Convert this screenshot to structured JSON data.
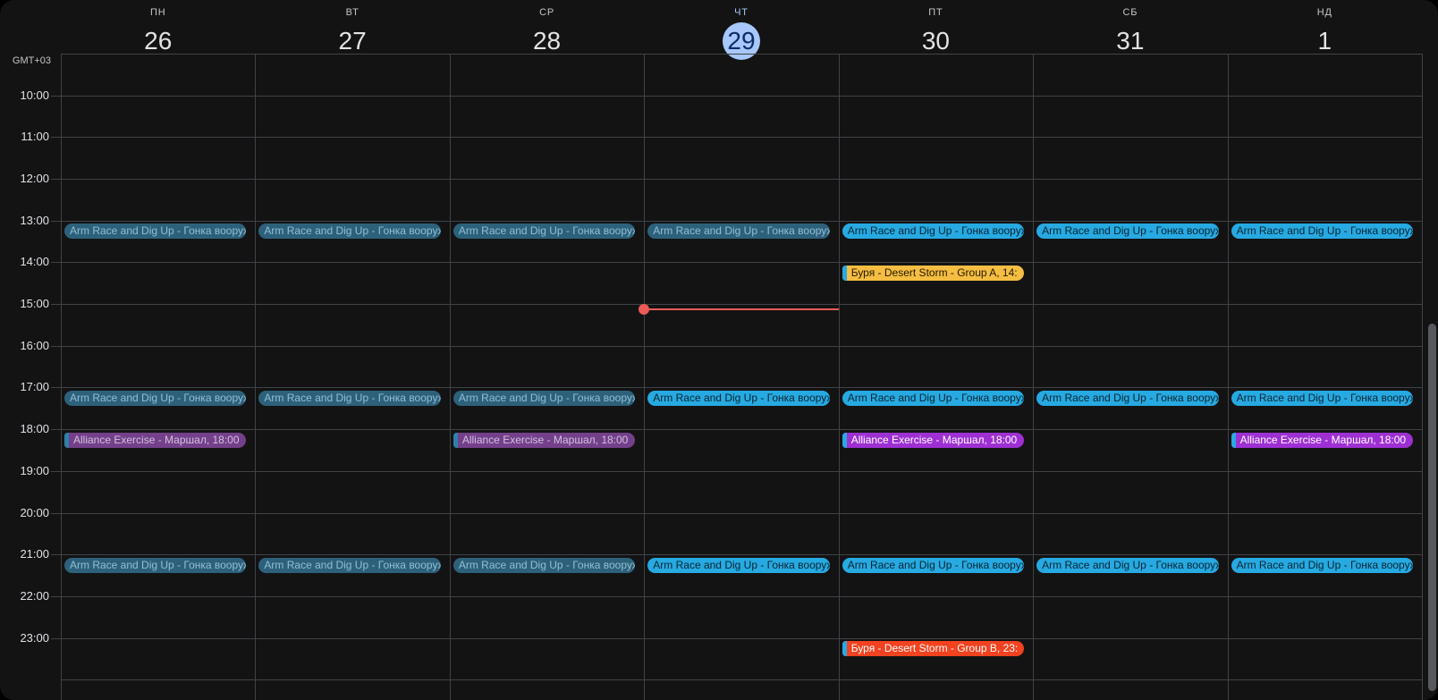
{
  "timezone_label": "GMT+03",
  "week_header": {
    "days": [
      {
        "name": "ПН",
        "date": "26",
        "today": false
      },
      {
        "name": "ВТ",
        "date": "27",
        "today": false
      },
      {
        "name": "СР",
        "date": "28",
        "today": false
      },
      {
        "name": "ЧТ",
        "date": "29",
        "today": true
      },
      {
        "name": "ПТ",
        "date": "30",
        "today": false
      },
      {
        "name": "СБ",
        "date": "31",
        "today": false
      },
      {
        "name": "НД",
        "date": "1",
        "today": false
      }
    ]
  },
  "hour_labels": [
    "10:00",
    "11:00",
    "12:00",
    "13:00",
    "14:00",
    "15:00",
    "16:00",
    "17:00",
    "18:00",
    "19:00",
    "20:00",
    "21:00",
    "22:00",
    "23:00"
  ],
  "events": [
    {
      "day": 0,
      "time": "13:00",
      "label": "Arm Race and Dig Up - Гонка вооруж",
      "style": "blue_muted"
    },
    {
      "day": 1,
      "time": "13:00",
      "label": "Arm Race and Dig Up - Гонка вооруж",
      "style": "blue_muted"
    },
    {
      "day": 2,
      "time": "13:00",
      "label": "Arm Race and Dig Up - Гонка вооруж",
      "style": "blue_muted"
    },
    {
      "day": 3,
      "time": "13:00",
      "label": "Arm Race and Dig Up - Гонка вооруж",
      "style": "blue_muted"
    },
    {
      "day": 4,
      "time": "13:00",
      "label": "Arm Race and Dig Up - Гонка вооруж",
      "style": "blue_bright"
    },
    {
      "day": 5,
      "time": "13:00",
      "label": "Arm Race and Dig Up - Гонка вооруж",
      "style": "blue_bright"
    },
    {
      "day": 6,
      "time": "13:00",
      "label": "Arm Race and Dig Up - Гонка вооруж",
      "style": "blue_bright"
    },
    {
      "day": 4,
      "time": "14:00",
      "label": "Буря - Desert Storm - Group A, 14:",
      "style": "yellow"
    },
    {
      "day": 0,
      "time": "17:00",
      "label": "Arm Race and Dig Up - Гонка вооруж",
      "style": "blue_muted"
    },
    {
      "day": 1,
      "time": "17:00",
      "label": "Arm Race and Dig Up - Гонка вооруж",
      "style": "blue_muted"
    },
    {
      "day": 2,
      "time": "17:00",
      "label": "Arm Race and Dig Up - Гонка вооруж",
      "style": "blue_muted"
    },
    {
      "day": 3,
      "time": "17:00",
      "label": "Arm Race and Dig Up - Гонка вооруж",
      "style": "blue_bright"
    },
    {
      "day": 4,
      "time": "17:00",
      "label": "Arm Race and Dig Up - Гонка вооруж",
      "style": "blue_bright"
    },
    {
      "day": 5,
      "time": "17:00",
      "label": "Arm Race and Dig Up - Гонка вооруж",
      "style": "blue_bright"
    },
    {
      "day": 6,
      "time": "17:00",
      "label": "Arm Race and Dig Up - Гонка вооруж",
      "style": "blue_bright"
    },
    {
      "day": 0,
      "time": "18:00",
      "label": "Alliance Exercise - Маршал, 18:00",
      "style": "purple_muted"
    },
    {
      "day": 2,
      "time": "18:00",
      "label": "Alliance Exercise - Маршал, 18:00",
      "style": "purple_muted"
    },
    {
      "day": 4,
      "time": "18:00",
      "label": "Alliance Exercise - Маршал, 18:00",
      "style": "purple_bright"
    },
    {
      "day": 6,
      "time": "18:00",
      "label": "Alliance Exercise - Маршал, 18:00",
      "style": "purple_bright"
    },
    {
      "day": 0,
      "time": "21:00",
      "label": "Arm Race and Dig Up - Гонка вооруж",
      "style": "blue_muted"
    },
    {
      "day": 1,
      "time": "21:00",
      "label": "Arm Race and Dig Up - Гонка вооруж",
      "style": "blue_muted"
    },
    {
      "day": 2,
      "time": "21:00",
      "label": "Arm Race and Dig Up - Гонка вооруж",
      "style": "blue_muted"
    },
    {
      "day": 3,
      "time": "21:00",
      "label": "Arm Race and Dig Up - Гонка вооруж",
      "style": "blue_bright"
    },
    {
      "day": 4,
      "time": "21:00",
      "label": "Arm Race and Dig Up - Гонка вооруж",
      "style": "blue_bright"
    },
    {
      "day": 5,
      "time": "21:00",
      "label": "Arm Race and Dig Up - Гонка вооруж",
      "style": "blue_bright"
    },
    {
      "day": 6,
      "time": "21:00",
      "label": "Arm Race and Dig Up - Гонка вооруж",
      "style": "blue_bright"
    },
    {
      "day": 4,
      "time": "23:00",
      "label": "Буря - Desert Storm - Group B, 23:",
      "style": "red"
    }
  ],
  "now_indicator": {
    "day": 3,
    "time": "15:08"
  },
  "colors": {
    "surface": "#131314",
    "gridline": "#404346",
    "today_circle_bg": "#a8c7fa",
    "today_circle_text": "#0a2e65",
    "now_line": "#ec5b56",
    "palette": {
      "blue_bright": {
        "bg": "#27a9e1",
        "text": "#082633"
      },
      "blue_muted": {
        "bg": "#2d617b",
        "text": "#92bed6"
      },
      "yellow": {
        "bg": "#f5bd41",
        "text": "#241b02",
        "stripe": "#27aae4"
      },
      "red": {
        "bg": "#f2421f",
        "text": "#ffffff",
        "stripe": "#27aae4"
      },
      "purple_bright": {
        "bg": "#9e30d3",
        "text": "#ffffff",
        "stripe": "#27aae4"
      },
      "purple_muted": {
        "bg": "#74408b",
        "text": "#d3c1dd",
        "stripe": "#2f80a8"
      }
    }
  }
}
